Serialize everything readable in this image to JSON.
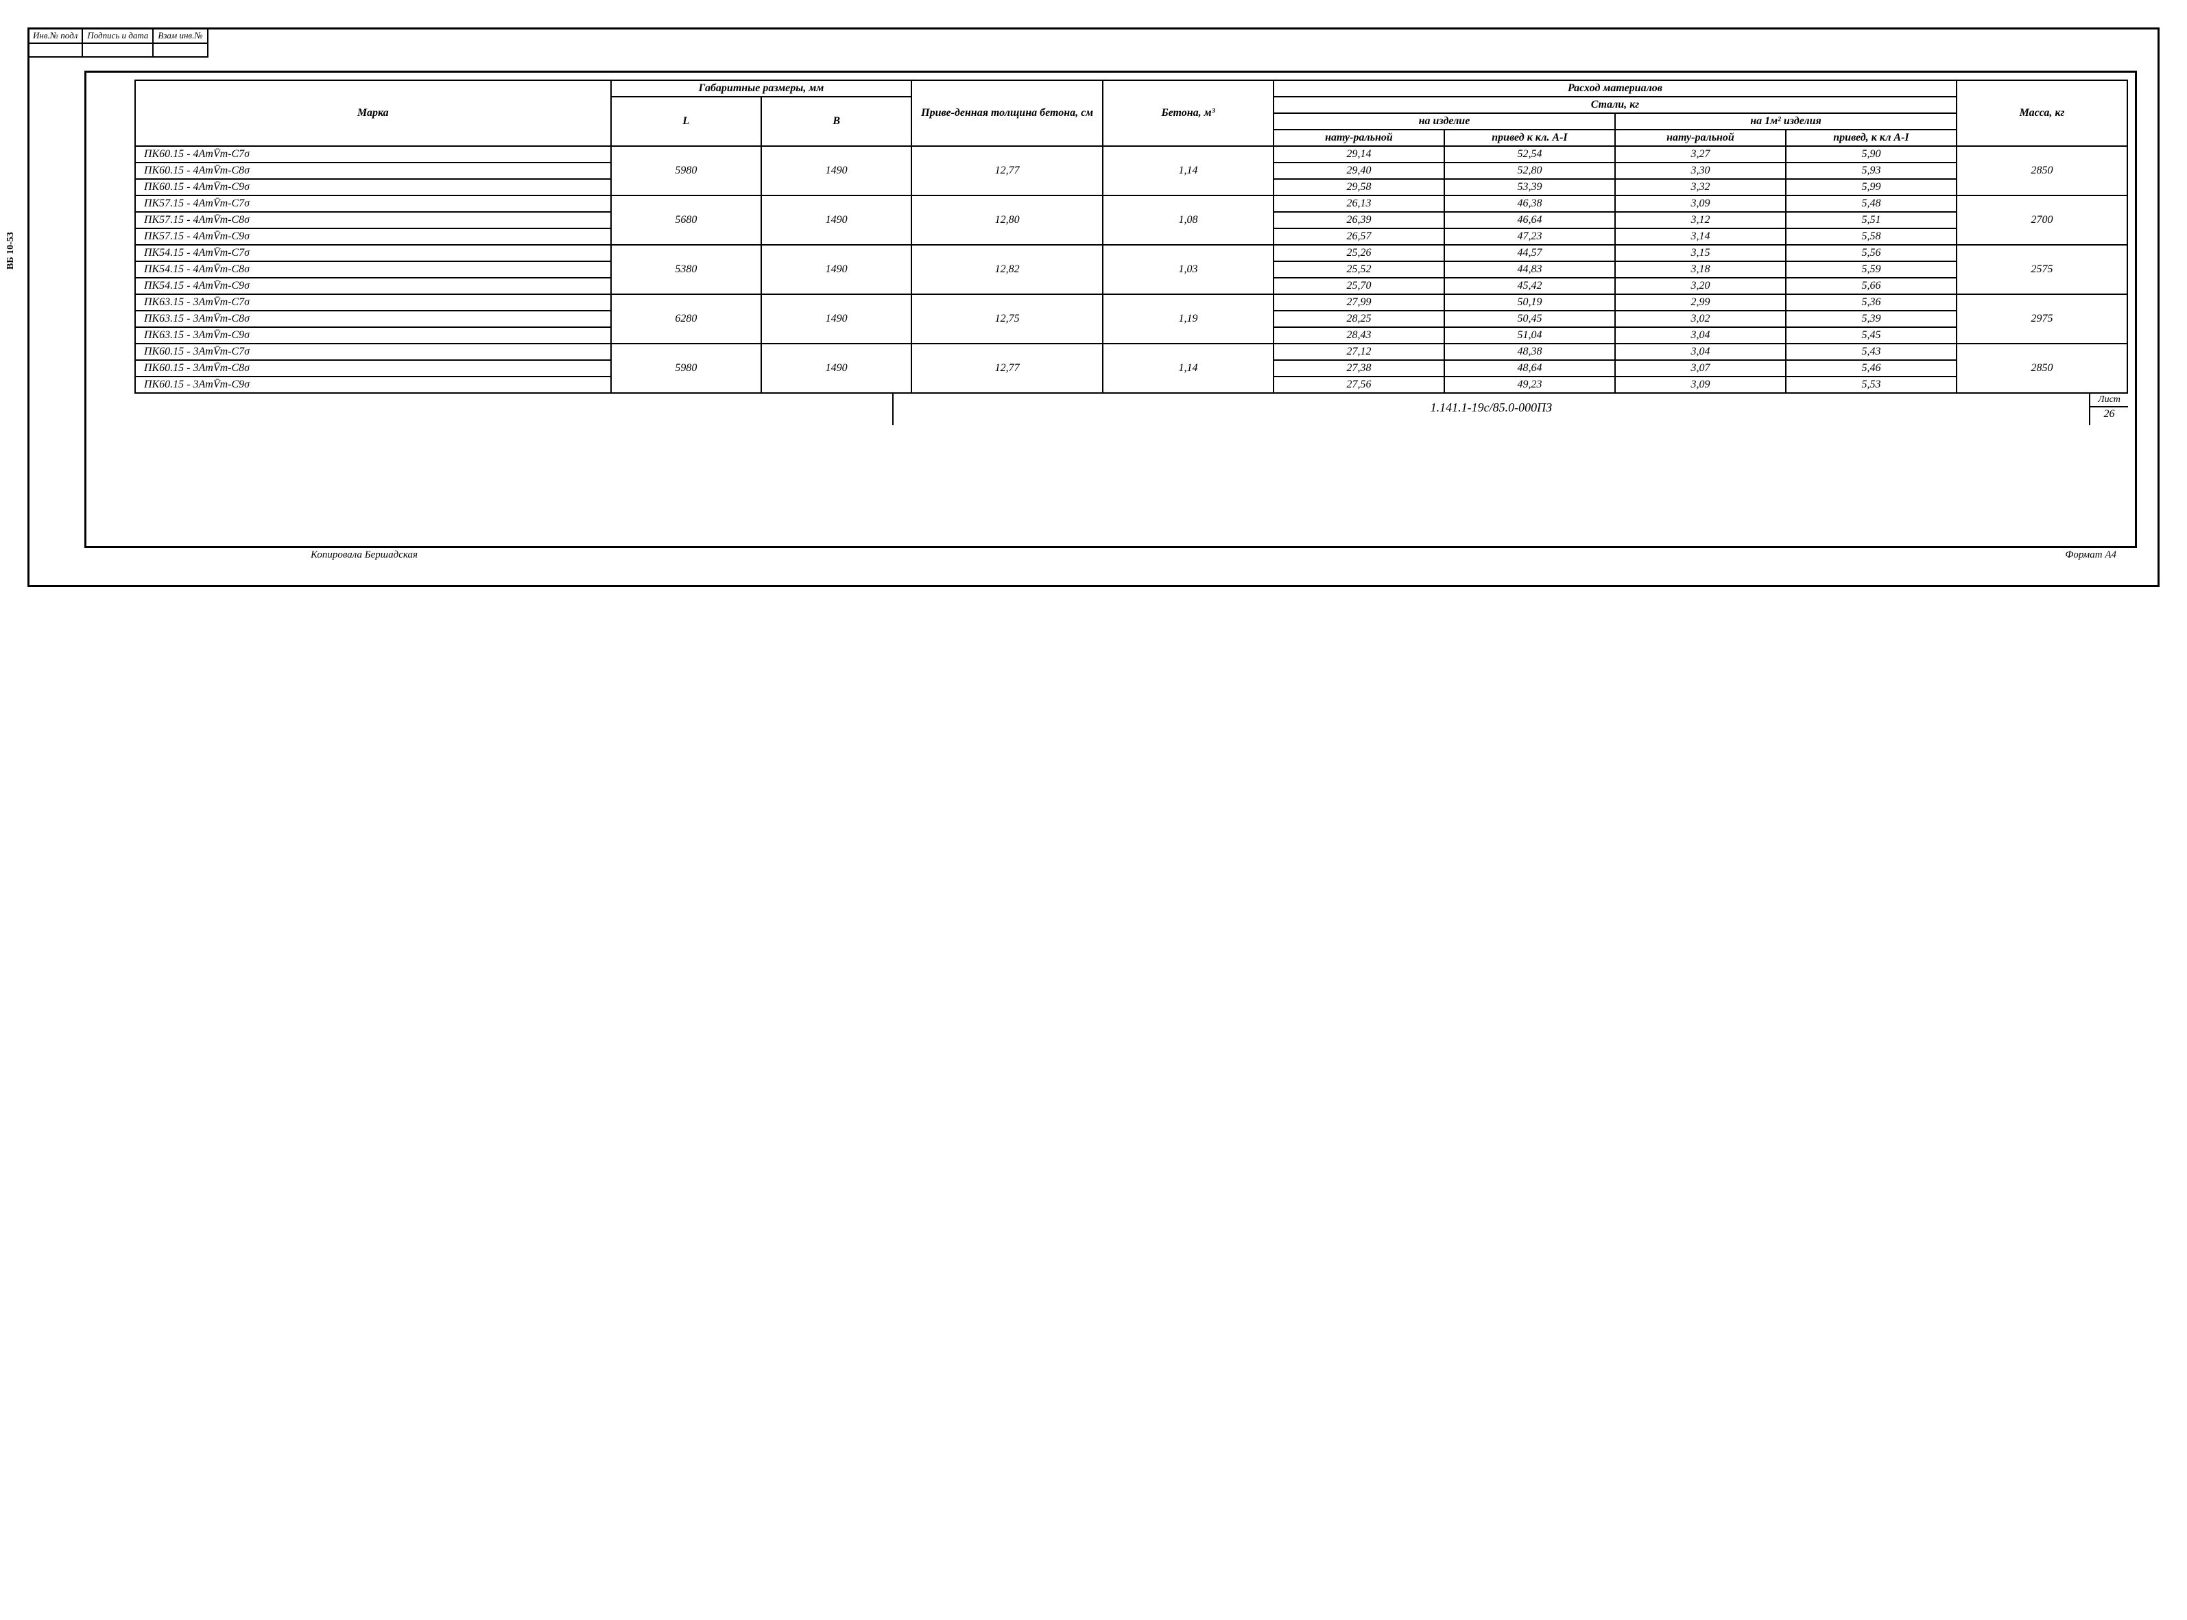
{
  "stamp": {
    "c1": "Инв.№ подл",
    "c2": "Подпись и дата",
    "c3": "Взам инв.№"
  },
  "side_label": "ВБ  10-53",
  "headers": {
    "marka": "Марка",
    "gabarit": "Габаритные размеры, мм",
    "L": "L",
    "B": "В",
    "prived": "Приве-денная толщина бетона, см",
    "beton": "Бетона, м³",
    "rashod": "Расход материалов",
    "stali": "Стали, кг",
    "na_izd": "на изделие",
    "na_m2": "на 1м² изделия",
    "natur": "нату-ральной",
    "prived_kl": "привед к кл. А-I",
    "prived_kl2": "привед, к кл А-I",
    "massa": "Масса, кг"
  },
  "groups": [
    {
      "L": "5980",
      "B": "1490",
      "thick": "12,77",
      "beton": "1,14",
      "massa": "2850",
      "rows": [
        {
          "marka": "ПК60.15 - 4АтV̄т-С7σ",
          "n1": "29,14",
          "n2": "52,54",
          "n3": "3,27",
          "n4": "5,90"
        },
        {
          "marka": "ПК60.15 - 4АтV̄т-С8σ",
          "n1": "29,40",
          "n2": "52,80",
          "n3": "3,30",
          "n4": "5,93"
        },
        {
          "marka": "ПК60.15 - 4АтV̄т-С9σ",
          "n1": "29,58",
          "n2": "53,39",
          "n3": "3,32",
          "n4": "5,99"
        }
      ]
    },
    {
      "L": "5680",
      "B": "1490",
      "thick": "12,80",
      "beton": "1,08",
      "massa": "2700",
      "rows": [
        {
          "marka": "ПК57.15 - 4АтV̄т-С7σ",
          "n1": "26,13",
          "n2": "46,38",
          "n3": "3,09",
          "n4": "5,48"
        },
        {
          "marka": "ПК57.15 - 4АтV̄т-С8σ",
          "n1": "26,39",
          "n2": "46,64",
          "n3": "3,12",
          "n4": "5,51"
        },
        {
          "marka": "ПК57.15 - 4АтV̄т-С9σ",
          "n1": "26,57",
          "n2": "47,23",
          "n3": "3,14",
          "n4": "5,58"
        }
      ]
    },
    {
      "L": "5380",
      "B": "1490",
      "thick": "12,82",
      "beton": "1,03",
      "massa": "2575",
      "rows": [
        {
          "marka": "ПК54.15 - 4АтV̄т-С7σ",
          "n1": "25,26",
          "n2": "44,57",
          "n3": "3,15",
          "n4": "5,56"
        },
        {
          "marka": "ПК54.15 - 4АтV̄т-С8σ",
          "n1": "25,52",
          "n2": "44,83",
          "n3": "3,18",
          "n4": "5,59"
        },
        {
          "marka": "ПК54.15 - 4АтV̄т-С9σ",
          "n1": "25,70",
          "n2": "45,42",
          "n3": "3,20",
          "n4": "5,66"
        }
      ]
    },
    {
      "L": "6280",
      "B": "1490",
      "thick": "12,75",
      "beton": "1,19",
      "massa": "2975",
      "rows": [
        {
          "marka": "ПК63.15 - 3АтV̄т-С7σ",
          "n1": "27,99",
          "n2": "50,19",
          "n3": "2,99",
          "n4": "5,36"
        },
        {
          "marka": "ПК63.15 - 3АтV̄т-С8σ",
          "n1": "28,25",
          "n2": "50,45",
          "n3": "3,02",
          "n4": "5,39"
        },
        {
          "marka": "ПК63.15 - 3АтV̄т-С9σ",
          "n1": "28,43",
          "n2": "51,04",
          "n3": "3,04",
          "n4": "5,45"
        }
      ]
    },
    {
      "L": "5980",
      "B": "1490",
      "thick": "12,77",
      "beton": "1,14",
      "massa": "2850",
      "rows": [
        {
          "marka": "ПК60.15 - 3АтV̄т-С7σ",
          "n1": "27,12",
          "n2": "48,38",
          "n3": "3,04",
          "n4": "5,43"
        },
        {
          "marka": "ПК60.15 - 3АтV̄т-С8σ",
          "n1": "27,38",
          "n2": "48,64",
          "n3": "3,07",
          "n4": "5,46"
        },
        {
          "marka": "ПК60.15 - 3АтV̄т-С9σ",
          "n1": "27,56",
          "n2": "49,23",
          "n3": "3,09",
          "n4": "5,53"
        }
      ]
    }
  ],
  "footer": {
    "doc_no": "1.141.1-19с/85.0-000ПЗ",
    "list_label": "Лист",
    "list_no": "26",
    "kopirovala": "Копировала Бершадская",
    "format": "Формат А4"
  }
}
